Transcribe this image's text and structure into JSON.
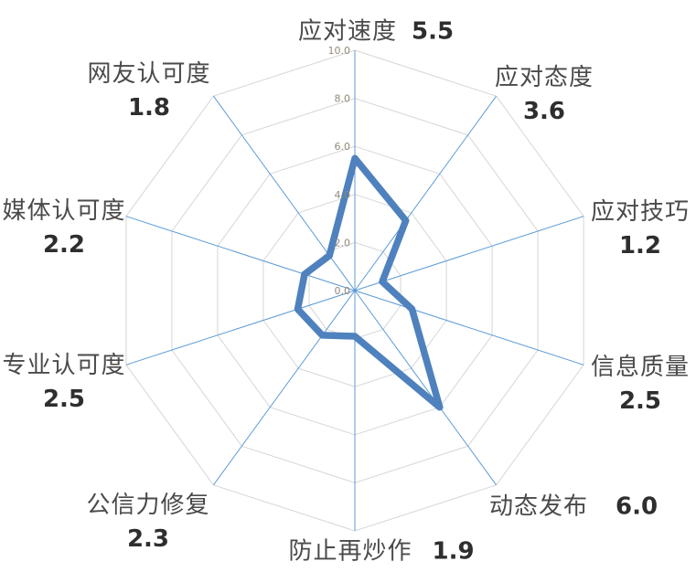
{
  "chart_data": {
    "type": "radar",
    "categories": [
      "应对速度",
      "应对态度",
      "应对技巧",
      "信息质量",
      "动态发布",
      "防止再炒作",
      "公信力修复",
      "专业认可度",
      "媒体认可度",
      "网友认可度"
    ],
    "values": [
      5.5,
      3.6,
      1.2,
      2.5,
      6.0,
      1.9,
      2.3,
      2.5,
      2.2,
      1.8
    ],
    "value_labels": [
      "5.5",
      "3.6",
      "1.2",
      "2.5",
      "6.0",
      "1.9",
      "2.3",
      "2.5",
      "2.2",
      "1.8"
    ],
    "axis": {
      "min": 0,
      "max": 10,
      "step": 2,
      "tick_labels": [
        "0.0",
        "2.0",
        "4.0",
        "6.0",
        "8.0",
        "10.0"
      ]
    },
    "grid": true,
    "legend": "none",
    "colors": {
      "series": "#4e81bd",
      "spokes": "#5b9bd5",
      "rings": "#d6d6d6",
      "tick_text": "#948a7a",
      "category_text": "#4a4a4a",
      "value_text": "#2e2e2e",
      "background": "#ffffff"
    }
  }
}
